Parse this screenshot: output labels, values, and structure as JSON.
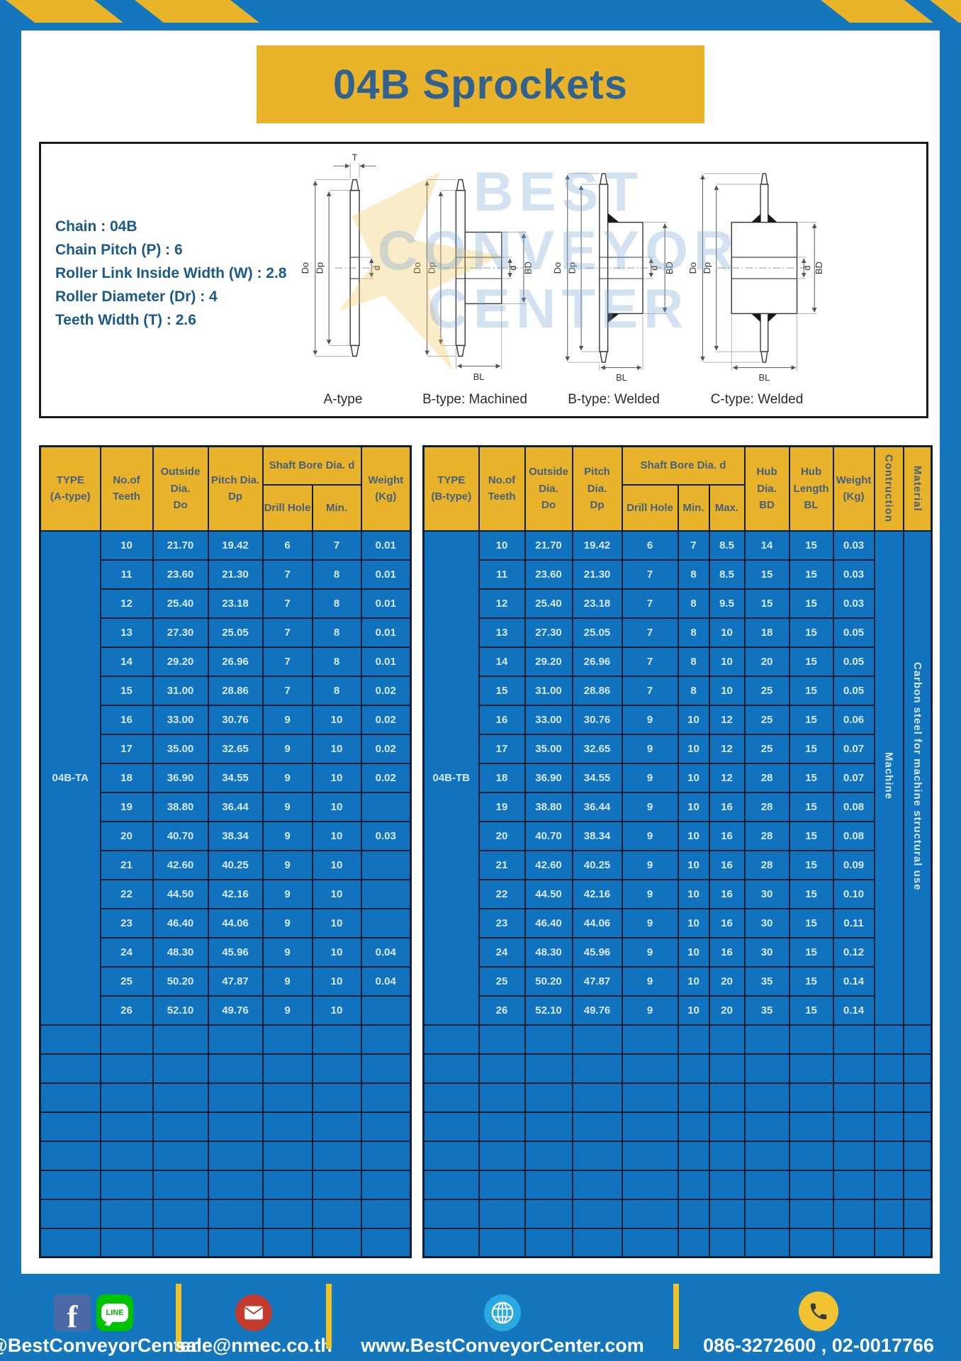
{
  "title": "04B Sprockets",
  "specs": [
    "Chain  : 04B",
    "Chain Pitch (P)  :  6",
    "Roller Link Inside Width (W)  :  2.8",
    "Roller Diameter (Dr)  : 4",
    "Teeth Width (T)  :  2.6"
  ],
  "diagrams": {
    "types": [
      "A-type",
      "B-type: Machined",
      "B-type: Welded",
      "C-type: Welded"
    ],
    "dims": {
      "t": "T",
      "outside": "Do",
      "pitch": "Dp",
      "bore": "d",
      "hub": "BD",
      "hub_len": "BL"
    }
  },
  "watermark": {
    "line1": "BEST",
    "line2": "CONVEYOR",
    "line3": "CENTER"
  },
  "table_a": {
    "type_label": "04B-TA",
    "headers": {
      "type": [
        "TYPE",
        "(A-type)"
      ],
      "teeth": [
        "No.of",
        "Teeth"
      ],
      "outside": [
        "Outside",
        "Dia.",
        "Do"
      ],
      "pitch": [
        "Pitch Dia.",
        "Dp"
      ],
      "shaft_bore": "Shaft Bore Dia. d",
      "drill_hole": "Drill Hole",
      "min": "Min.",
      "weight": [
        "Weight",
        "(Kg)"
      ]
    },
    "rows": [
      [
        "10",
        "21.70",
        "19.42",
        "6",
        "7",
        "0.01"
      ],
      [
        "11",
        "23.60",
        "21.30",
        "7",
        "8",
        "0.01"
      ],
      [
        "12",
        "25.40",
        "23.18",
        "7",
        "8",
        "0.01"
      ],
      [
        "13",
        "27.30",
        "25.05",
        "7",
        "8",
        "0.01"
      ],
      [
        "14",
        "29.20",
        "26.96",
        "7",
        "8",
        "0.01"
      ],
      [
        "15",
        "31.00",
        "28.86",
        "7",
        "8",
        "0.02"
      ],
      [
        "16",
        "33.00",
        "30.76",
        "9",
        "10",
        "0.02"
      ],
      [
        "17",
        "35.00",
        "32.65",
        "9",
        "10",
        "0.02"
      ],
      [
        "18",
        "36.90",
        "34.55",
        "9",
        "10",
        "0.02"
      ],
      [
        "19",
        "38.80",
        "36.44",
        "9",
        "10",
        ""
      ],
      [
        "20",
        "40.70",
        "38.34",
        "9",
        "10",
        "0.03"
      ],
      [
        "21",
        "42.60",
        "40.25",
        "9",
        "10",
        ""
      ],
      [
        "22",
        "44.50",
        "42.16",
        "9",
        "10",
        ""
      ],
      [
        "23",
        "46.40",
        "44.06",
        "9",
        "10",
        ""
      ],
      [
        "24",
        "48.30",
        "45.96",
        "9",
        "10",
        "0.04"
      ],
      [
        "25",
        "50.20",
        "47.87",
        "9",
        "10",
        "0.04"
      ],
      [
        "26",
        "52.10",
        "49.76",
        "9",
        "10",
        ""
      ]
    ]
  },
  "table_b": {
    "type_label": "04B-TB",
    "construction_value": "Machine",
    "material_value": "Carbon steel for machine structural use",
    "headers": {
      "type": [
        "TYPE",
        "(B-type)"
      ],
      "teeth": [
        "No.of",
        "Teeth"
      ],
      "outside": [
        "Outside",
        "Dia.",
        "Do"
      ],
      "pitch": [
        "Pitch Dia.",
        "Dp"
      ],
      "shaft_bore": "Shaft Bore Dia. d",
      "drill_hole": "Drill Hole",
      "min": "Min.",
      "max": "Max.",
      "hub_dia": [
        "Hub Dia.",
        "BD"
      ],
      "hub_length": [
        "Hub",
        "Length",
        "BL"
      ],
      "weight": [
        "Weight",
        "(Kg)"
      ],
      "construction": "Contruction",
      "material": "Material"
    },
    "rows": [
      [
        "10",
        "21.70",
        "19.42",
        "6",
        "7",
        "8.5",
        "14",
        "15",
        "0.03"
      ],
      [
        "11",
        "23.60",
        "21.30",
        "7",
        "8",
        "8.5",
        "15",
        "15",
        "0.03"
      ],
      [
        "12",
        "25.40",
        "23.18",
        "7",
        "8",
        "9.5",
        "15",
        "15",
        "0.03"
      ],
      [
        "13",
        "27.30",
        "25.05",
        "7",
        "8",
        "10",
        "18",
        "15",
        "0.05"
      ],
      [
        "14",
        "29.20",
        "26.96",
        "7",
        "8",
        "10",
        "20",
        "15",
        "0.05"
      ],
      [
        "15",
        "31.00",
        "28.86",
        "7",
        "8",
        "10",
        "25",
        "15",
        "0.05"
      ],
      [
        "16",
        "33.00",
        "30.76",
        "9",
        "10",
        "12",
        "25",
        "15",
        "0.06"
      ],
      [
        "17",
        "35.00",
        "32.65",
        "9",
        "10",
        "12",
        "25",
        "15",
        "0.07"
      ],
      [
        "18",
        "36.90",
        "34.55",
        "9",
        "10",
        "12",
        "28",
        "15",
        "0.07"
      ],
      [
        "19",
        "38.80",
        "36.44",
        "9",
        "10",
        "16",
        "28",
        "15",
        "0.08"
      ],
      [
        "20",
        "40.70",
        "38.34",
        "9",
        "10",
        "16",
        "28",
        "15",
        "0.08"
      ],
      [
        "21",
        "42.60",
        "40.25",
        "9",
        "10",
        "16",
        "28",
        "15",
        "0.09"
      ],
      [
        "22",
        "44.50",
        "42.16",
        "9",
        "10",
        "16",
        "30",
        "15",
        "0.10"
      ],
      [
        "23",
        "46.40",
        "44.06",
        "9",
        "10",
        "16",
        "30",
        "15",
        "0.11"
      ],
      [
        "24",
        "48.30",
        "45.96",
        "9",
        "10",
        "16",
        "30",
        "15",
        "0.12"
      ],
      [
        "25",
        "50.20",
        "47.87",
        "9",
        "10",
        "20",
        "35",
        "15",
        "0.14"
      ],
      [
        "26",
        "52.10",
        "49.76",
        "9",
        "10",
        "20",
        "35",
        "15",
        "0.14"
      ]
    ]
  },
  "empty_rows": 8,
  "footer": {
    "facebook_glyph": "f",
    "line_badge": "LINE",
    "social": "@BestConveyorCenter",
    "email": "sale@nmec.co.th",
    "website": "www.BestConveyorCenter.com",
    "phone": "086-3272600 , 02-0017766"
  },
  "colors": {
    "frame_blue": "#1476bd",
    "cell_blue": "#1173bd",
    "accent_yellow": "#e9b32a",
    "border_dark": "#0e1e33"
  }
}
